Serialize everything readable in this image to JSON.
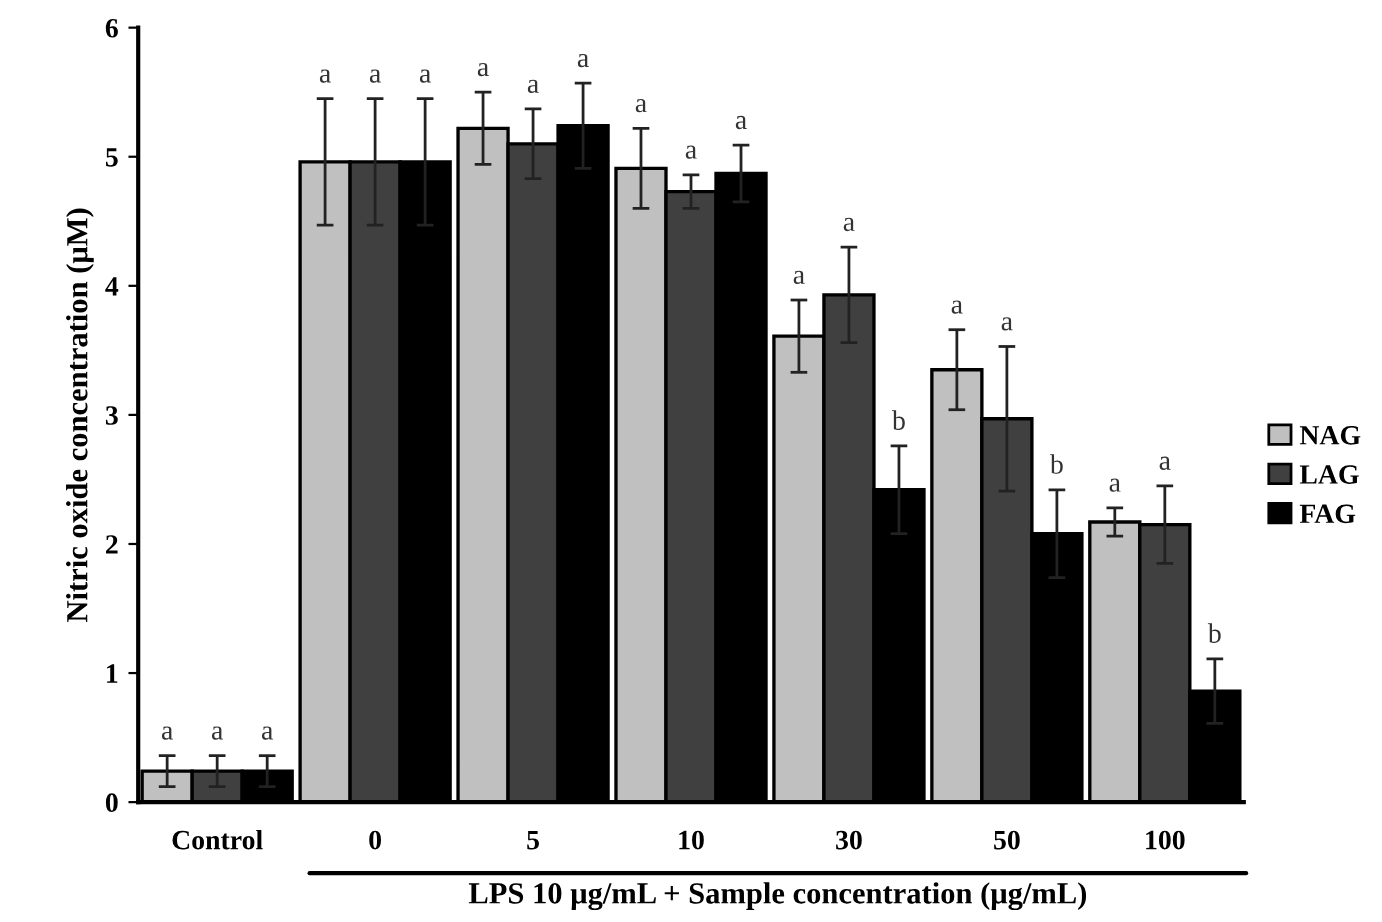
{
  "chart_data": {
    "type": "bar",
    "ylabel": "Nitric oxide concentration (μM)",
    "xlabel": "LPS 10 μg/mL + Sample concentration (μg/mL)",
    "categories": [
      "Control",
      "0",
      "5",
      "10",
      "30",
      "50",
      "100"
    ],
    "series": [
      {
        "name": "NAG",
        "color": "#c0c0c0",
        "values": [
          0.24,
          4.96,
          5.22,
          4.91,
          3.61,
          3.35,
          2.17
        ],
        "errors": [
          0.12,
          0.49,
          0.28,
          0.31,
          0.28,
          0.31,
          0.11
        ],
        "value_labels": [
          "a",
          "a",
          "a",
          "a",
          "a",
          "a",
          "a"
        ]
      },
      {
        "name": "LAG",
        "color": "#404040",
        "values": [
          0.24,
          4.96,
          5.1,
          4.73,
          3.93,
          2.97,
          2.15
        ],
        "errors": [
          0.12,
          0.49,
          0.27,
          0.13,
          0.37,
          0.56,
          0.3
        ],
        "value_labels": [
          "a",
          "a",
          "a",
          "a",
          "a",
          "a",
          "a"
        ]
      },
      {
        "name": "FAG",
        "color": "#000000",
        "values": [
          0.24,
          4.96,
          5.24,
          4.87,
          2.42,
          2.08,
          0.86
        ],
        "errors": [
          0.12,
          0.49,
          0.33,
          0.22,
          0.34,
          0.34,
          0.25
        ],
        "value_labels": [
          "a",
          "a",
          "a",
          "a",
          "b",
          "b",
          "b"
        ]
      }
    ],
    "ylim": [
      0,
      6
    ],
    "yticks": [
      0,
      1,
      2,
      3,
      4,
      5,
      6
    ],
    "grid": false,
    "legend": "right"
  }
}
